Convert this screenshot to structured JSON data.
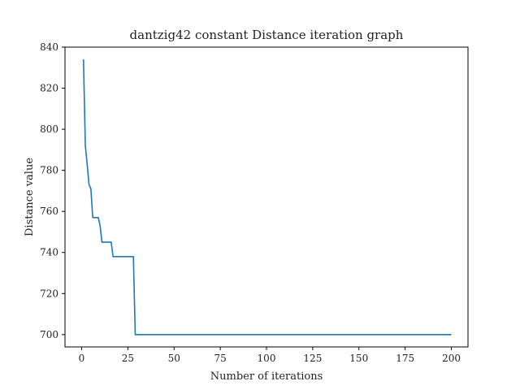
{
  "chart_data": {
    "type": "line",
    "title": "dantzig42 constant Distance iteration graph",
    "xlabel": "Number of iterations",
    "ylabel": "Distance value",
    "xlim": [
      -9,
      209
    ],
    "ylim": [
      694,
      840
    ],
    "xticks": [
      0,
      25,
      50,
      75,
      100,
      125,
      150,
      175,
      200
    ],
    "yticks": [
      700,
      720,
      740,
      760,
      780,
      800,
      820,
      840
    ],
    "grid": false,
    "series": [
      {
        "color": "#1f77b4",
        "x": [
          1,
          2,
          3,
          4,
          5,
          6,
          7,
          8,
          9,
          10,
          11,
          12,
          13,
          14,
          15,
          16,
          17,
          18,
          19,
          20,
          21,
          22,
          23,
          24,
          25,
          26,
          27,
          28,
          29,
          30,
          200
        ],
        "y": [
          834,
          792,
          783,
          773,
          771,
          757,
          757,
          757,
          757,
          753,
          745,
          745,
          745,
          745,
          745,
          745,
          738,
          738,
          738,
          738,
          738,
          738,
          738,
          738,
          738,
          738,
          738,
          738,
          700,
          700,
          700
        ]
      }
    ]
  }
}
